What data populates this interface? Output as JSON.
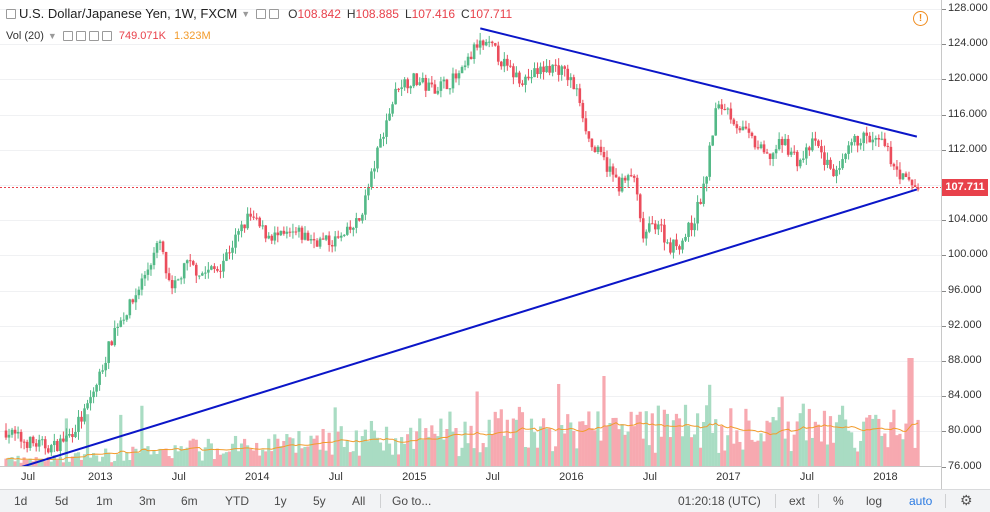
{
  "legend": {
    "title": "U.S. Dollar/Japanese Yen, 1W, FXCM",
    "open_label": "O",
    "open": "108.842",
    "high_label": "H",
    "high": "108.885",
    "low_label": "L",
    "low": "107.416",
    "close_label": "C",
    "close": "107.711",
    "volume_label": "Vol (20)",
    "volume": "749.071K",
    "volume_ma": "1.323M"
  },
  "price_axis": {
    "ticks": [
      "128.000",
      "124.000",
      "120.000",
      "116.000",
      "112.000",
      "108.000",
      "104.000",
      "100.000",
      "96.000",
      "92.000",
      "88.000",
      "84.000",
      "80.000",
      "76.000"
    ],
    "last_price": "107.711"
  },
  "time_axis": {
    "ticks": [
      "Jul",
      "2013",
      "Jul",
      "2014",
      "Jul",
      "2015",
      "Jul",
      "2016",
      "Jul",
      "2017",
      "Jul",
      "2018"
    ]
  },
  "toolbar": {
    "ranges": [
      "1d",
      "5d",
      "1m",
      "3m",
      "6m",
      "YTD",
      "1y",
      "5y",
      "All"
    ],
    "goto": "Go to...",
    "clock": "01:20:18 (UTC)",
    "ext": "ext",
    "percent": "%",
    "log": "log",
    "auto": "auto"
  },
  "colors": {
    "up": "#53b987",
    "down": "#eb4d5c",
    "vol_up": "#a9dcc3",
    "vol_down": "#f7a9b0",
    "trendline": "#0b16c8",
    "vol_ma": "#f29b2b",
    "last_price": "#e8414b"
  },
  "icons": [
    "warning-icon",
    "settings-icon",
    "chevron-down-icon",
    "eye-icon",
    "gear-icon"
  ],
  "chart_data": {
    "type": "candlestick",
    "symbol": "USD/JPY",
    "interval": "1W",
    "price_range": [
      74.5,
      129
    ],
    "x_range": [
      2012.4,
      2018.22
    ],
    "weekly_closes": [
      [
        2012.4,
        80.1
      ],
      [
        2012.5,
        79.0
      ],
      [
        2012.6,
        78.5
      ],
      [
        2012.7,
        78.2
      ],
      [
        2012.8,
        79.5
      ],
      [
        2012.9,
        82.0
      ],
      [
        2012.98,
        85.5
      ],
      [
        2013.1,
        92.0
      ],
      [
        2013.2,
        94.5
      ],
      [
        2013.3,
        98.5
      ],
      [
        2013.38,
        101.5
      ],
      [
        2013.45,
        95.5
      ],
      [
        2013.55,
        99.0
      ],
      [
        2013.65,
        98.0
      ],
      [
        2013.75,
        98.5
      ],
      [
        2013.85,
        101.5
      ],
      [
        2013.95,
        104.5
      ],
      [
        2014.05,
        102.5
      ],
      [
        2014.15,
        102.0
      ],
      [
        2014.25,
        102.5
      ],
      [
        2014.35,
        101.8
      ],
      [
        2014.45,
        101.5
      ],
      [
        2014.55,
        102.0
      ],
      [
        2014.65,
        104.0
      ],
      [
        2014.72,
        108.5
      ],
      [
        2014.8,
        114.0
      ],
      [
        2014.9,
        119.5
      ],
      [
        2015.0,
        120.0
      ],
      [
        2015.1,
        119.0
      ],
      [
        2015.2,
        119.5
      ],
      [
        2015.3,
        120.5
      ],
      [
        2015.4,
        124.0
      ],
      [
        2015.5,
        123.5
      ],
      [
        2015.6,
        121.0
      ],
      [
        2015.7,
        120.0
      ],
      [
        2015.8,
        121.0
      ],
      [
        2015.9,
        121.5
      ],
      [
        2015.98,
        120.3
      ],
      [
        2016.05,
        118.0
      ],
      [
        2016.12,
        112.5
      ],
      [
        2016.2,
        111.0
      ],
      [
        2016.3,
        108.0
      ],
      [
        2016.4,
        109.0
      ],
      [
        2016.45,
        102.0
      ],
      [
        2016.55,
        104.0
      ],
      [
        2016.62,
        101.0
      ],
      [
        2016.7,
        101.5
      ],
      [
        2016.78,
        104.0
      ],
      [
        2016.85,
        108.0
      ],
      [
        2016.92,
        116.5
      ],
      [
        2016.98,
        117.0
      ],
      [
        2017.05,
        115.0
      ],
      [
        2017.15,
        113.0
      ],
      [
        2017.25,
        111.0
      ],
      [
        2017.35,
        113.0
      ],
      [
        2017.45,
        110.5
      ],
      [
        2017.55,
        113.0
      ],
      [
        2017.62,
        110.5
      ],
      [
        2017.7,
        109.0
      ],
      [
        2017.78,
        112.5
      ],
      [
        2017.85,
        113.5
      ],
      [
        2017.92,
        112.8
      ],
      [
        2017.98,
        112.7
      ],
      [
        2018.05,
        110.5
      ],
      [
        2018.12,
        108.5
      ],
      [
        2018.2,
        107.7
      ]
    ],
    "volume_ma_level": "1.323M",
    "trendlines": [
      {
        "name": "resistance",
        "points": [
          [
            2015.42,
            125.8
          ],
          [
            2018.2,
            113.5
          ]
        ]
      },
      {
        "name": "support",
        "points": [
          [
            2012.4,
            75.2
          ],
          [
            2018.2,
            107.5
          ]
        ]
      }
    ],
    "last_price": 107.711
  }
}
